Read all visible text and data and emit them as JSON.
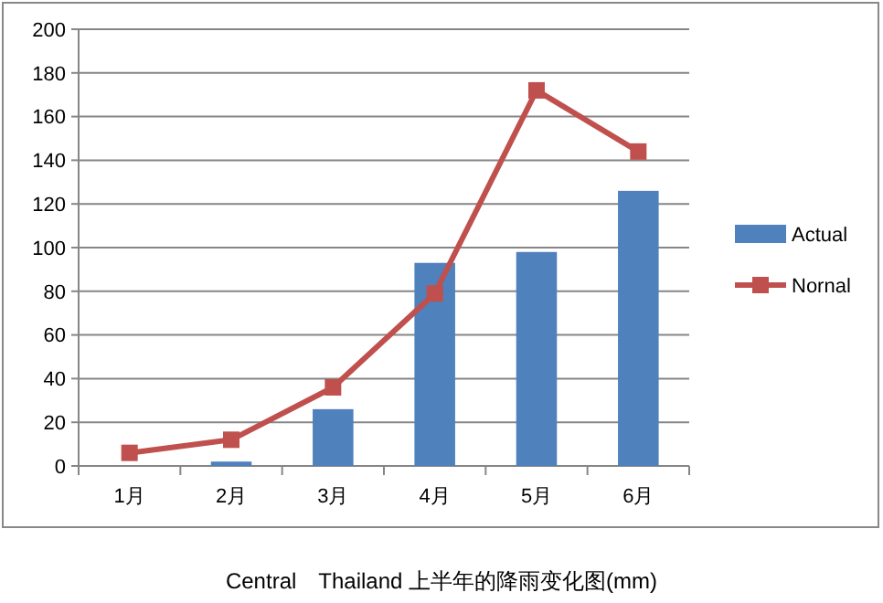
{
  "chart_data": {
    "type": "bar",
    "title": "Central　Thailand 上半年的降雨变化图(mm)",
    "categories": [
      "1月",
      "2月",
      "3月",
      "4月",
      "5月",
      "6月"
    ],
    "series": [
      {
        "name": "Actual",
        "color": "#4f81bd",
        "values": [
          0,
          2,
          26,
          93,
          98,
          126
        ]
      },
      {
        "name": "Nornal",
        "type": "line",
        "color": "#c0504d",
        "values": [
          6,
          12,
          36,
          79,
          172,
          144
        ],
        "marker": "square"
      }
    ],
    "ylim": [
      0,
      200
    ],
    "yticks": [
      0,
      20,
      40,
      60,
      80,
      100,
      120,
      140,
      160,
      180,
      200
    ],
    "grid": "y",
    "legend": "right"
  }
}
